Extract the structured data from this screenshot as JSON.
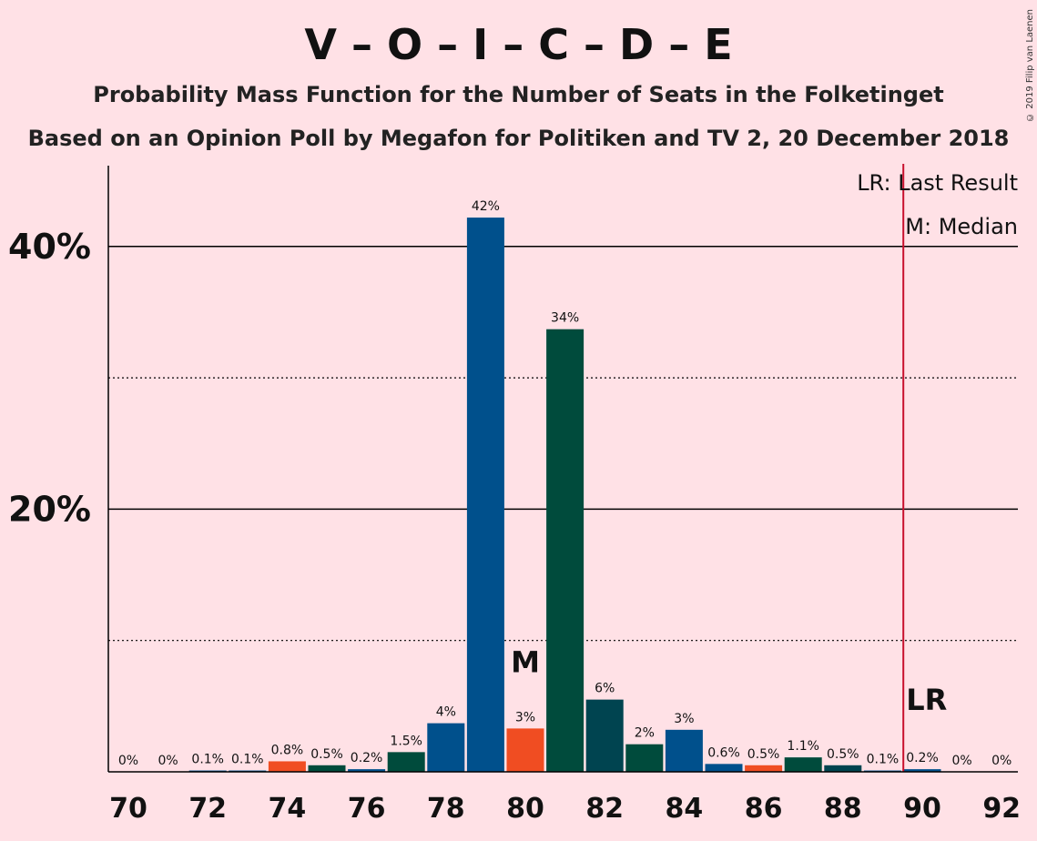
{
  "chart_data": {
    "type": "bar",
    "title": "V – O – I – C – D – E",
    "subtitle1": "Probability Mass Function for the Number of Seats in the Folketinget",
    "subtitle2": "Based on an Opinion Poll by Megafon for Politiken and TV 2, 20 December 2018",
    "copyright": "© 2019 Filip van Laenen",
    "legend": {
      "lr": "LR: Last Result",
      "m": "M: Median"
    },
    "ylim": [
      0,
      46
    ],
    "ytick_values": [
      20,
      40
    ],
    "ytick_labels": [
      "20%",
      "40%"
    ],
    "x_tick_labels": [
      "70",
      "72",
      "74",
      "76",
      "78",
      "80",
      "82",
      "84",
      "86",
      "88",
      "90",
      "92"
    ],
    "categories": [
      70,
      71,
      72,
      73,
      74,
      75,
      76,
      77,
      78,
      79,
      80,
      81,
      82,
      83,
      84,
      85,
      86,
      87,
      88,
      89,
      90,
      91,
      92
    ],
    "values": [
      0,
      0,
      0.1,
      0.1,
      0.8,
      0.5,
      0.2,
      1.5,
      3.7,
      42.2,
      3.3,
      33.7,
      5.5,
      2.1,
      3.2,
      0.6,
      0.5,
      1.1,
      0.5,
      0.1,
      0.2,
      0,
      0
    ],
    "labels": [
      "0%",
      "0%",
      "0.1%",
      "0.1%",
      "0.8%",
      "0.5%",
      "0.2%",
      "1.5%",
      "4%",
      "42%",
      "3%",
      "34%",
      "6%",
      "2%",
      "3%",
      "0.6%",
      "0.5%",
      "1.1%",
      "0.5%",
      "0.1%",
      "0.2%",
      "0%",
      "0%"
    ],
    "colors": [
      "#00508C",
      "#00508C",
      "#00508C",
      "#00508C",
      "#F04D22",
      "#004B3C",
      "#00508C",
      "#004B3C",
      "#00508C",
      "#00508C",
      "#F04D22",
      "#004B3C",
      "#004450",
      "#004B3C",
      "#00508C",
      "#00508C",
      "#F04D22",
      "#004B3C",
      "#004450",
      "#00508C",
      "#00508C",
      "#00508C",
      "#00508C"
    ],
    "median_seat": 80,
    "median_marker": "M",
    "last_result_seat": 90,
    "last_result_marker": "LR",
    "last_result_color": "#C8102E"
  }
}
